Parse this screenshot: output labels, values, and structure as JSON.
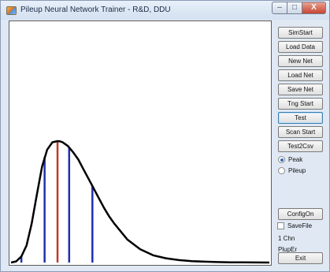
{
  "window": {
    "title": "Pileup Neural Network Trainer - R&D, DDU",
    "minimize_glyph": "–",
    "maximize_glyph": "□",
    "close_glyph": "X",
    "icon": "app-icon"
  },
  "buttons": {
    "sim_start": "SimStart",
    "load_data": "Load Data",
    "new_net": "New Net",
    "load_net": "Load Net",
    "save_net": "Save Net",
    "tng_start": "Tng Start",
    "test": "Test",
    "scan_start": "Scan Start",
    "test2csv": "Test2Csv",
    "config_on": "ConfigOn",
    "exit": "Exit"
  },
  "mode_options": {
    "peak": "Peak",
    "pileup": "Pileup",
    "selected": "Peak"
  },
  "save_file": {
    "label": "SaveFile",
    "checked": false
  },
  "status": {
    "channels": "1 Chn",
    "error_label": "PlupEr"
  },
  "chart_data": {
    "type": "line",
    "title": "",
    "xlabel": "",
    "ylabel": "",
    "grid": false,
    "xlim": [
      0,
      100
    ],
    "ylim": [
      0,
      1
    ],
    "pulse_curve": {
      "x": [
        0,
        2,
        4,
        6,
        8,
        10,
        12,
        14,
        16,
        18,
        19,
        20,
        22,
        24,
        26,
        28,
        30,
        32,
        34,
        36,
        38,
        40,
        45,
        50,
        55,
        60,
        65,
        70,
        75,
        80,
        85,
        90,
        95,
        100
      ],
      "y": [
        0,
        0.01,
        0.05,
        0.14,
        0.32,
        0.56,
        0.79,
        0.93,
        0.99,
        1.0,
        0.998,
        0.99,
        0.96,
        0.91,
        0.85,
        0.77,
        0.69,
        0.61,
        0.53,
        0.45,
        0.38,
        0.32,
        0.19,
        0.11,
        0.06,
        0.035,
        0.02,
        0.012,
        0.007,
        0.004,
        0.002,
        0.001,
        0.0005,
        0
      ]
    },
    "sample_lines": [
      {
        "x": 4,
        "y": 0.05,
        "color": "#1f2fb0"
      },
      {
        "x": 13,
        "y": 0.87,
        "color": "#1f2fb0"
      },
      {
        "x": 18,
        "y": 1.0,
        "color": "#c0392b"
      },
      {
        "x": 22.5,
        "y": 0.95,
        "color": "#1f2fb0"
      },
      {
        "x": 31.5,
        "y": 0.63,
        "color": "#1f2fb0"
      }
    ],
    "curve_color": "#000000"
  }
}
